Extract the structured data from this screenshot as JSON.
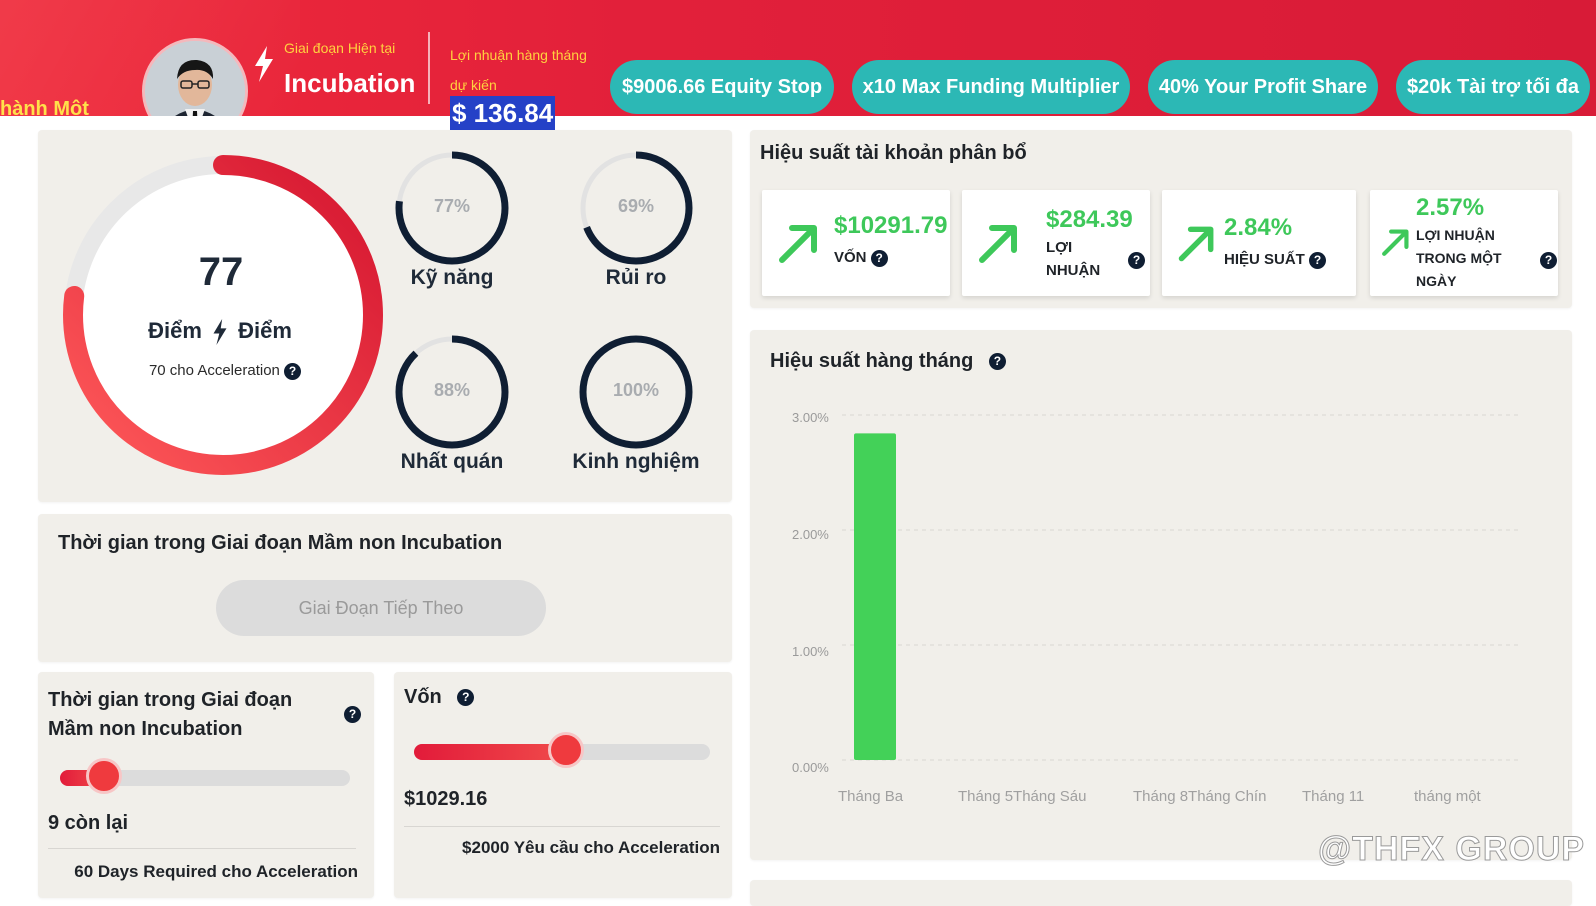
{
  "header": {
    "left_clipped_text": "hành Một",
    "phase_label": "Giai đoạn Hiện tại",
    "phase_value": "Incubation",
    "profit_label": "Lợi nhuận hàng tháng dự kiến",
    "profit_value": "$ 136.84",
    "pills": [
      {
        "label": "$9006.66 Equity Stop"
      },
      {
        "label": "x10 Max Funding Multiplier"
      },
      {
        "label": "40% Your Profit Share"
      },
      {
        "label": "$20k Tài trợ tối đa"
      }
    ]
  },
  "score": {
    "value": "77",
    "unit_left": "Điểm",
    "unit_right": "Điểm",
    "note": "70 cho Acceleration",
    "progress": 0.77,
    "metrics": [
      {
        "name": "Kỹ năng",
        "pct": "77%",
        "value": 0.77
      },
      {
        "name": "Rủi ro",
        "pct": "69%",
        "value": 0.69
      },
      {
        "name": "Nhất quán",
        "pct": "88%",
        "value": 0.88
      },
      {
        "name": "Kinh nghiệm",
        "pct": "100%",
        "value": 1.0
      }
    ]
  },
  "phase_time": {
    "title": "Thời gian trong Giai đoạn Mầm non Incubation",
    "next_button": "Giai Đoạn Tiếp Theo"
  },
  "days_card": {
    "title": "Thời gian trong Giai đoạn Mầm non Incubation",
    "remaining": "9 còn lại",
    "requirement": "60 Days Required cho Acceleration",
    "progress": 0.15
  },
  "capital_card": {
    "title": "Vốn",
    "value": "$1029.16",
    "requirement": "$2000 Yêu cầu cho Acceleration",
    "progress": 0.514
  },
  "performance": {
    "title": "Hiệu suất tài khoản phân bổ",
    "stats": [
      {
        "value": "$10291.79",
        "label": "VỐN"
      },
      {
        "value": "$284.39",
        "label": "LỢI NHUẬN"
      },
      {
        "value": "2.84%",
        "label": "HIỆU SUẤT"
      },
      {
        "value": "2.57%",
        "label": "LỢI NHUẬN TRONG MỘT NGÀY"
      }
    ]
  },
  "monthly": {
    "title": "Hiệu suất hàng tháng"
  },
  "chart_data": {
    "type": "bar",
    "title": "Hiệu suất hàng tháng",
    "categories": [
      "Tháng Ba",
      "Tháng 5",
      "Tháng Sáu",
      "Tháng 8",
      "Tháng Chín",
      "Tháng 11",
      "tháng một"
    ],
    "x_tick_labels": [
      "Tháng Ba",
      "Tháng 5Tháng Sáu",
      "Tháng 8Tháng Chín",
      "Tháng 11",
      "tháng một"
    ],
    "values": [
      2.84,
      0,
      0,
      0,
      0,
      0,
      0
    ],
    "y_ticks": [
      "3.00%",
      "2.00%",
      "1.00%",
      "0.00%"
    ],
    "ylim": [
      0,
      3
    ],
    "grid": true,
    "bar_color": "#43d158"
  },
  "watermark": "@THFX GROUP",
  "colors": {
    "header_red": "#e2203a",
    "pill_teal": "#2cb8b5",
    "accent_yellow": "#ffd23f",
    "positive_green": "#3ec85a",
    "ring_navy": "#0f1e33"
  }
}
